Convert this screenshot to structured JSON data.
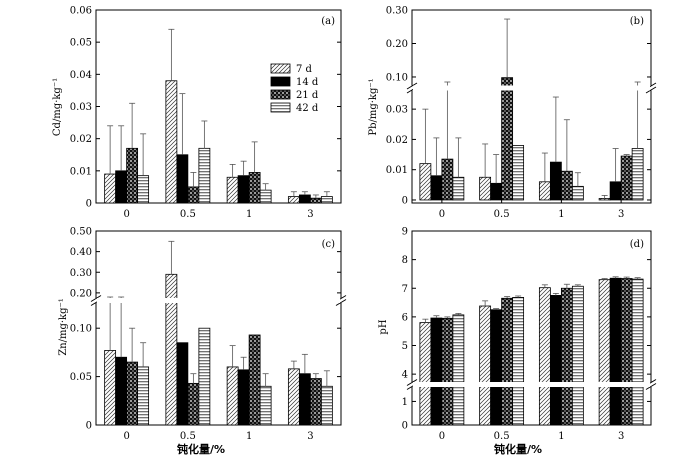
{
  "figure": {
    "xlabel_bottom_left": "钝化量/%",
    "xlabel_bottom_right": "钝化量/%"
  },
  "legend": {
    "entries": [
      "7 d",
      "14 d",
      "21 d",
      "42 d"
    ]
  },
  "chart_data": [
    {
      "id": "a",
      "type": "bar",
      "panel_label": "(a)",
      "ylabel": "Cd/mg·kg⁻¹",
      "categories": [
        "0",
        "0.5",
        "1",
        "3"
      ],
      "series": [
        {
          "name": "7 d",
          "values": [
            0.009,
            0.038,
            0.008,
            0.002
          ],
          "errors": [
            0.015,
            0.016,
            0.004,
            0.0015
          ]
        },
        {
          "name": "14 d",
          "values": [
            0.01,
            0.015,
            0.0085,
            0.0025
          ],
          "errors": [
            0.014,
            0.019,
            0.0045,
            0.001
          ]
        },
        {
          "name": "21 d",
          "values": [
            0.017,
            0.005,
            0.0095,
            0.0015
          ],
          "errors": [
            0.014,
            0.0045,
            0.0095,
            0.001
          ]
        },
        {
          "name": "42 d",
          "values": [
            0.0085,
            0.017,
            0.004,
            0.002
          ],
          "errors": [
            0.013,
            0.0085,
            0.002,
            0.0015
          ]
        }
      ],
      "yticks": [
        "0",
        "0.01",
        "0.02",
        "0.03",
        "0.04",
        "0.05",
        "0.06"
      ],
      "ylim": [
        0,
        0.06
      ],
      "broken_axis": false,
      "legend_location": "top-right"
    },
    {
      "id": "b",
      "type": "bar",
      "panel_label": "(b)",
      "ylabel": "Pb/mg·kg⁻¹",
      "categories": [
        "0",
        "0.5",
        "1",
        "3"
      ],
      "series": [
        {
          "name": "7 d",
          "values": [
            0.012,
            0.0075,
            0.006,
            0.0005
          ],
          "errors": [
            0.018,
            0.011,
            0.0095,
            0.001
          ]
        },
        {
          "name": "14 d",
          "values": [
            0.008,
            0.0055,
            0.0125,
            0.006
          ],
          "errors": [
            0.0125,
            0.0095,
            0.0215,
            0.011
          ]
        },
        {
          "name": "21 d",
          "values": [
            0.0135,
            0.098,
            0.0095,
            0.0145
          ],
          "errors": [
            0.022,
            0.175,
            0.017,
            0.0005
          ]
        },
        {
          "name": "42 d",
          "values": [
            0.0075,
            0.018,
            0.0045,
            0.017
          ],
          "errors": [
            0.013,
            0.0,
            0.0045,
            0.02
          ]
        }
      ],
      "yticks_lower": [
        "0",
        "0.01",
        "0.02",
        "0.03"
      ],
      "yticks_upper": [
        "0.10",
        "0.20",
        "0.30"
      ],
      "ylim_lower": [
        -0.001,
        0.035
      ],
      "ylim_upper": [
        0.085,
        0.3
      ],
      "broken_axis": true
    },
    {
      "id": "c",
      "type": "bar",
      "panel_label": "(c)",
      "ylabel": "Zn/mg·kg⁻¹",
      "categories": [
        "0",
        "0.5",
        "1",
        "3"
      ],
      "series": [
        {
          "name": "7 d",
          "values": [
            0.077,
            0.29,
            0.06,
            0.058
          ],
          "errors": [
            0.058,
            0.16,
            0.022,
            0.008
          ]
        },
        {
          "name": "14 d",
          "values": [
            0.07,
            0.085,
            0.057,
            0.053
          ],
          "errors": [
            0.058,
            0.0,
            0.013,
            0.02
          ]
        },
        {
          "name": "21 d",
          "values": [
            0.065,
            0.043,
            0.093,
            0.048
          ],
          "errors": [
            0.035,
            0.01,
            0.0,
            0.005
          ]
        },
        {
          "name": "42 d",
          "values": [
            0.06,
            0.1,
            0.04,
            0.04
          ],
          "errors": [
            0.025,
            0.0,
            0.013,
            0.016
          ]
        }
      ],
      "yticks_lower": [
        "0",
        "0.05",
        "0.10"
      ],
      "yticks_upper": [
        "0.20",
        "0.30",
        "0.40",
        "0.50"
      ],
      "ylim_lower": [
        0,
        0.125
      ],
      "ylim_upper": [
        0.18,
        0.5
      ],
      "broken_axis": true
    },
    {
      "id": "d",
      "type": "bar",
      "panel_label": "(d)",
      "ylabel": "pH",
      "categories": [
        "0",
        "0.5",
        "1",
        "3"
      ],
      "series": [
        {
          "name": "7 d",
          "values": [
            5.8,
            6.38,
            7.02,
            7.3
          ],
          "errors": [
            0.12,
            0.18,
            0.1,
            0.04
          ]
        },
        {
          "name": "14 d",
          "values": [
            5.96,
            6.25,
            6.75,
            7.35
          ],
          "errors": [
            0.08,
            0.04,
            0.07,
            0.05
          ]
        },
        {
          "name": "21 d",
          "values": [
            5.95,
            6.65,
            7.0,
            7.34
          ],
          "errors": [
            0.05,
            0.06,
            0.14,
            0.05
          ]
        },
        {
          "name": "42 d",
          "values": [
            6.07,
            6.68,
            7.07,
            7.32
          ],
          "errors": [
            0.05,
            0.05,
            0.05,
            0.05
          ]
        }
      ],
      "yticks_lower": [
        "0",
        "1"
      ],
      "yticks_upper": [
        "4",
        "5",
        "6",
        "7",
        "8",
        "9"
      ],
      "ylim_lower": [
        0,
        1.4
      ],
      "ylim_upper": [
        3.9,
        9
      ],
      "broken_axis": true
    }
  ]
}
